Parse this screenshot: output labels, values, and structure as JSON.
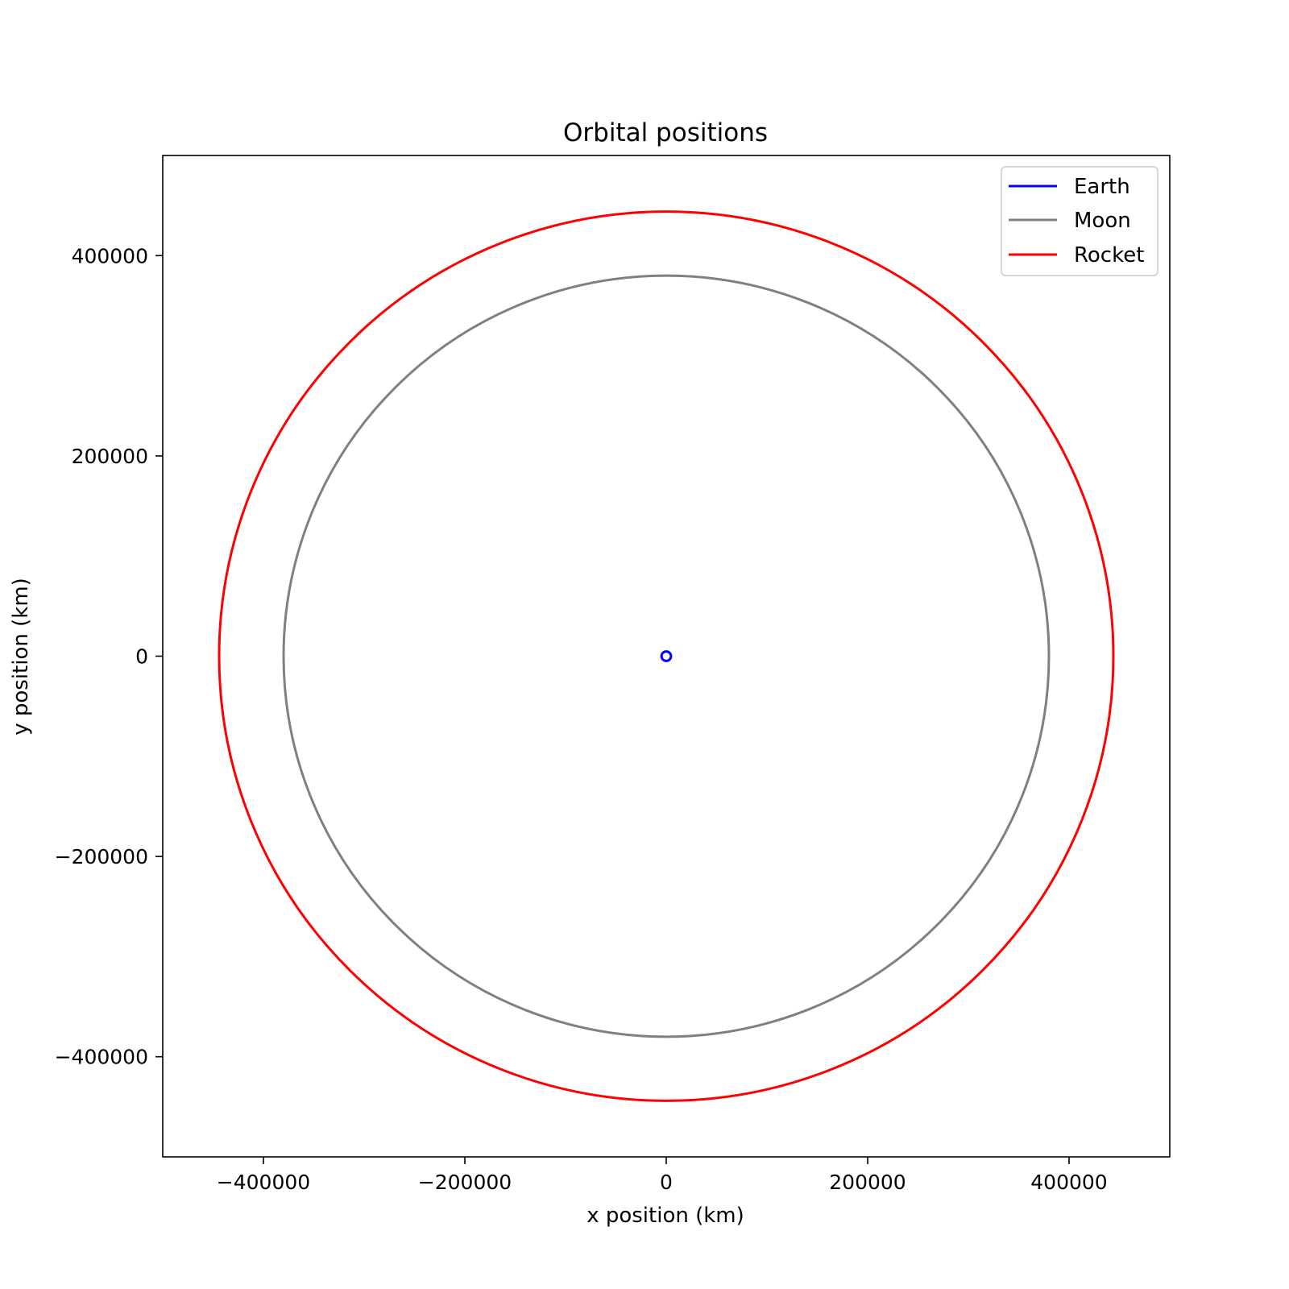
{
  "chart_data": {
    "type": "line",
    "title": "Orbital positions",
    "xlabel": "x position (km)",
    "ylabel": "y position (km)",
    "xlim": [
      -500000,
      500000
    ],
    "ylim": [
      -500000,
      500000
    ],
    "xticks": [
      -400000,
      -200000,
      0,
      200000,
      400000
    ],
    "yticks": [
      -400000,
      -200000,
      0,
      200000,
      400000
    ],
    "grid": false,
    "legend_position": "top-right",
    "series": [
      {
        "name": "Earth",
        "color": "#0000ff",
        "shape": "circle",
        "center": [
          0,
          0
        ],
        "radius": 4700
      },
      {
        "name": "Moon",
        "color": "#808080",
        "shape": "circle",
        "center": [
          0,
          0
        ],
        "radius": 380000
      },
      {
        "name": "Rocket",
        "color": "#ff0000",
        "shape": "circle",
        "center": [
          0,
          0
        ],
        "radius": 444000
      }
    ]
  }
}
